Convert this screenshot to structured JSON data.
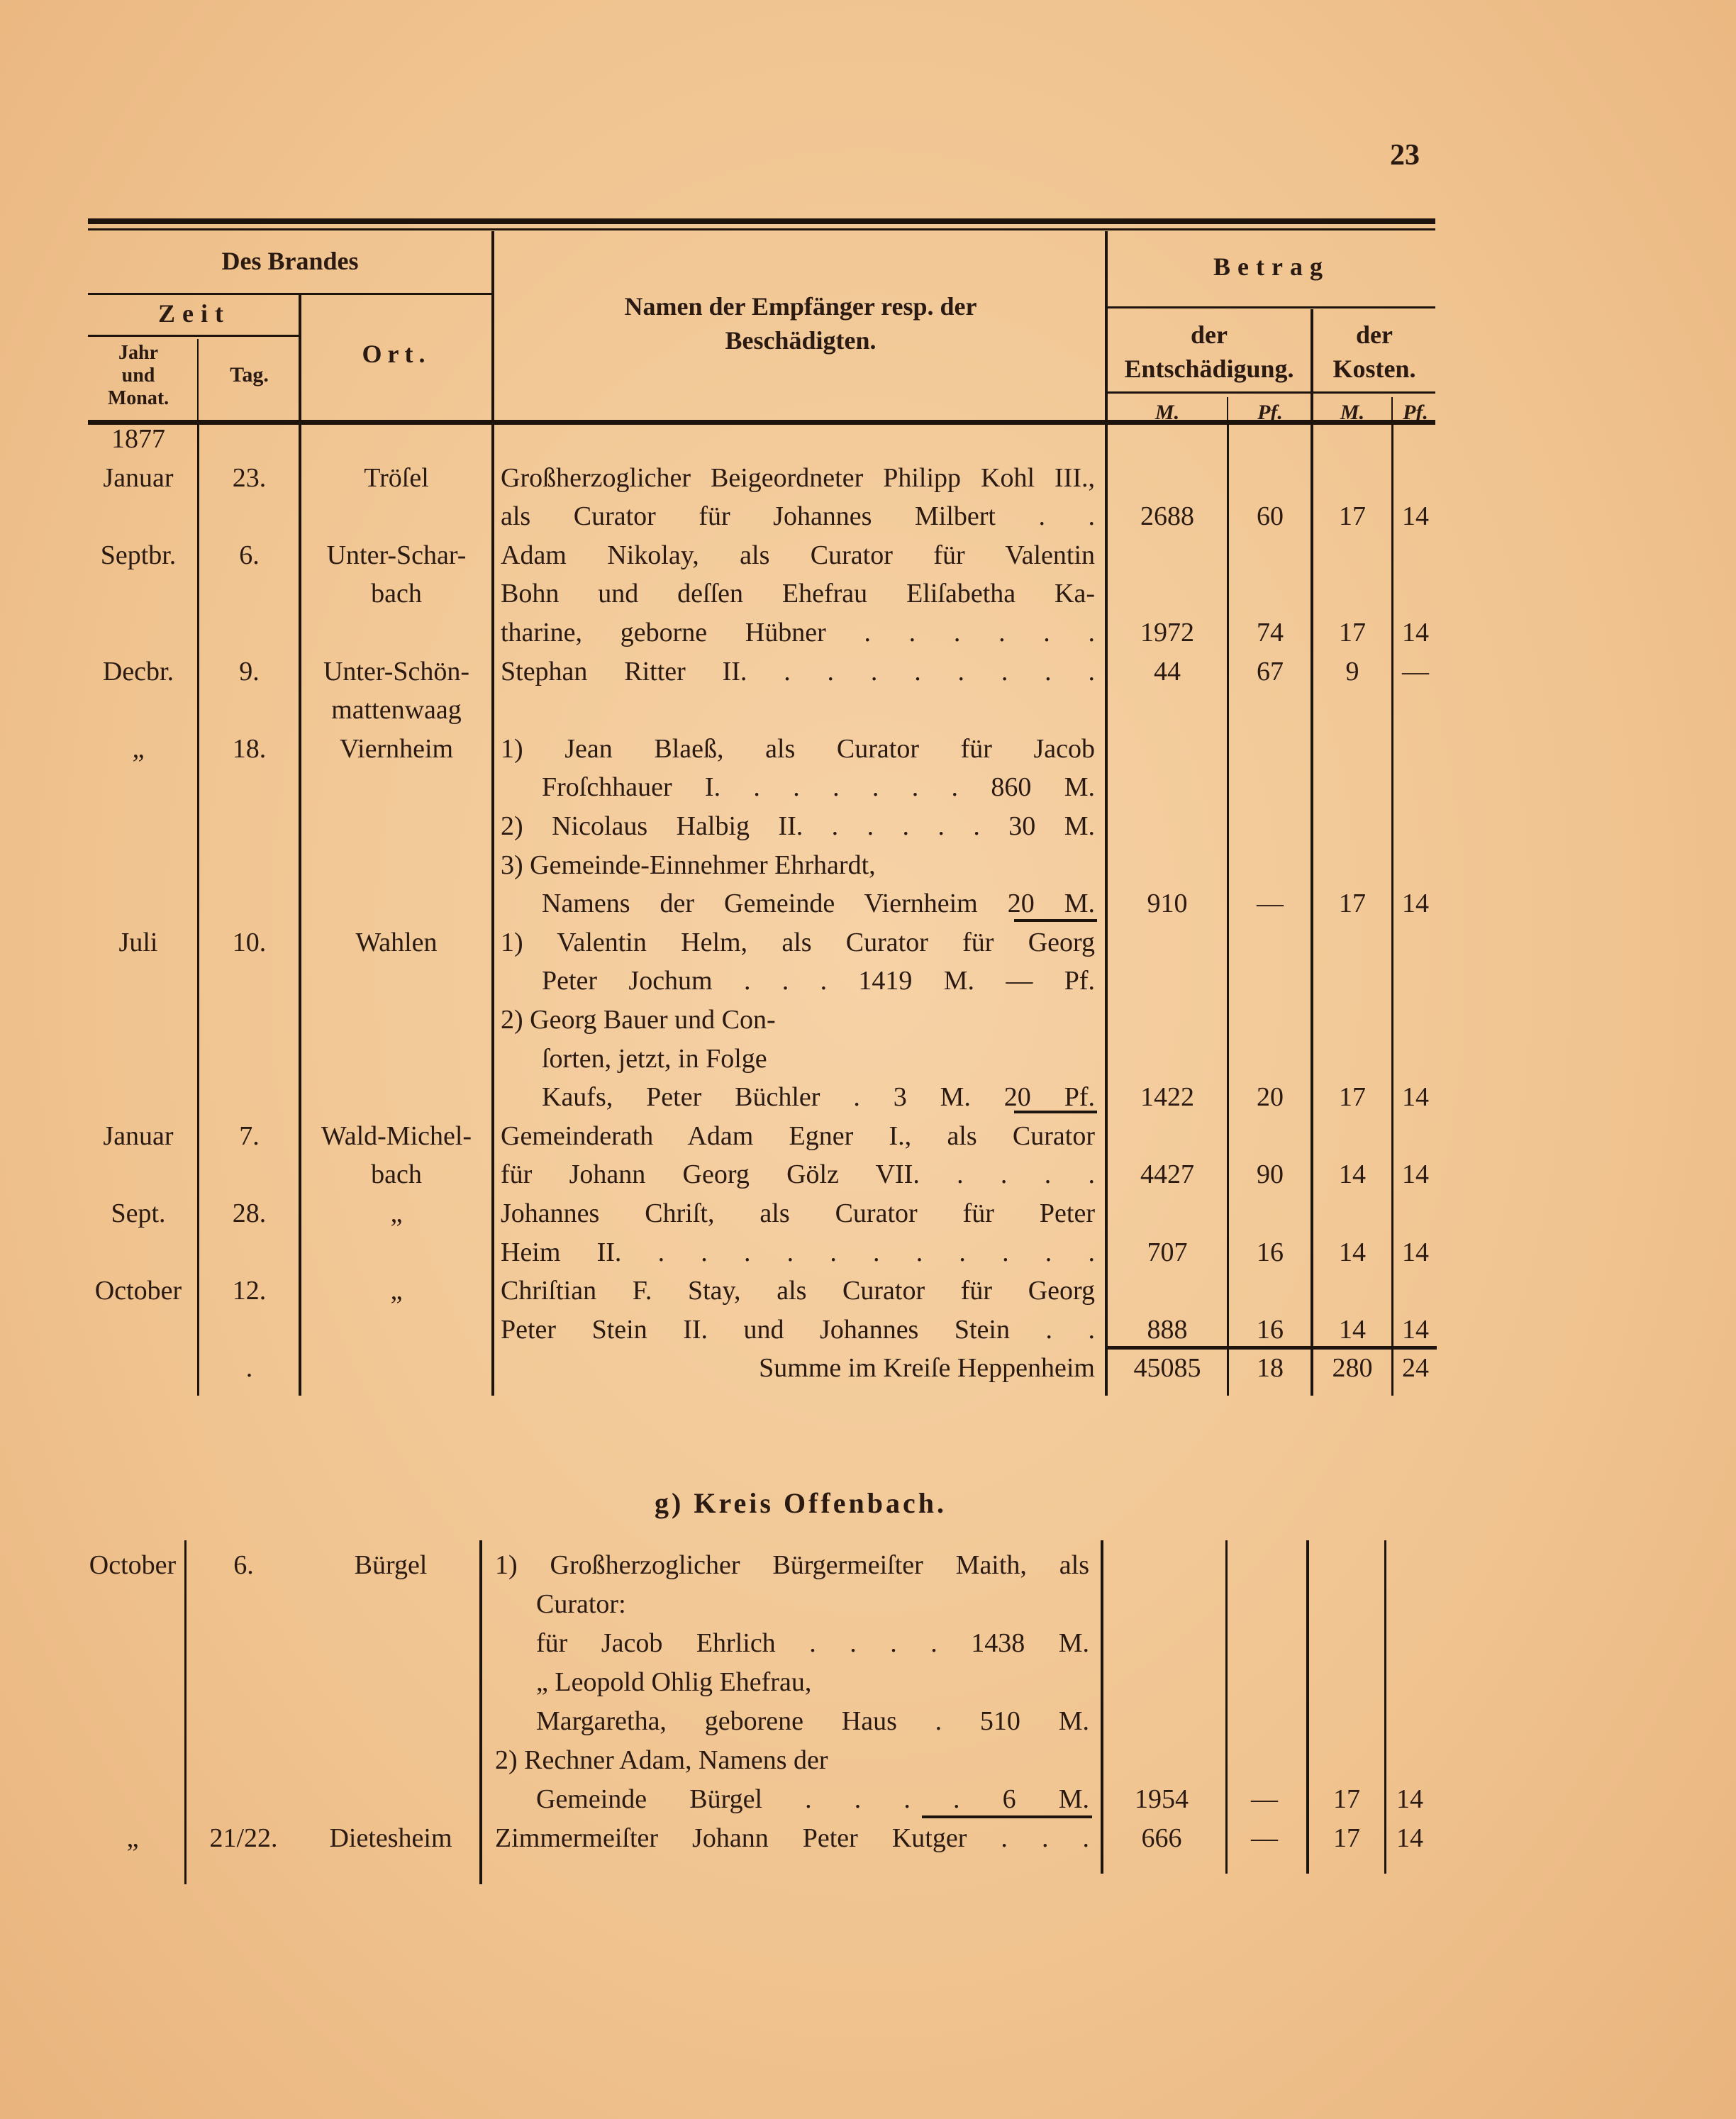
{
  "page_number": "23",
  "header": {
    "des_brandes": "Des Brandes",
    "zeit": "Zeit",
    "jahr_und_monat": [
      "Jahr",
      "und",
      "Monat."
    ],
    "tag": "Tag.",
    "ort": "Ort.",
    "namen": [
      "Namen der Empfänger resp. der",
      "Beschädigten."
    ],
    "betrag": "Betrag",
    "entschaedigung": [
      "der",
      "Entschädigung."
    ],
    "kosten": [
      "der",
      "Kosten."
    ],
    "mark": "M.",
    "pfennig": "Pf."
  },
  "section1": {
    "rows": [
      {
        "month": "1877",
        "day": "",
        "place": "",
        "name": "",
        "m1": "",
        "p1": "",
        "m2": "",
        "p2": ""
      },
      {
        "month": "Januar",
        "day": "23.",
        "place": "Tröſel",
        "name": "Großherzoglicher Beigeordneter Philipp Kohl III.,",
        "m1": "",
        "p1": "",
        "m2": "",
        "p2": ""
      },
      {
        "month": "",
        "day": "",
        "place": "",
        "name": "als Curator für Johannes Milbert  .  .",
        "m1": "2688",
        "p1": "60",
        "m2": "17",
        "p2": "14"
      },
      {
        "month": "Septbr.",
        "day": "6.",
        "place": "Unter-Schar-",
        "name": "Adam Nikolay, als Curator für Valentin",
        "m1": "",
        "p1": "",
        "m2": "",
        "p2": ""
      },
      {
        "month": "",
        "day": "",
        "place": "bach",
        "name": "Bohn und deſſen Ehefrau Eliſabetha Ka-",
        "m1": "",
        "p1": "",
        "m2": "",
        "p2": ""
      },
      {
        "month": "",
        "day": "",
        "place": "",
        "name": "tharine, geborne Hübner . . . . . .",
        "m1": "1972",
        "p1": "74",
        "m2": "17",
        "p2": "14"
      },
      {
        "month": "Decbr.",
        "day": "9.",
        "place": "Unter-Schön-",
        "name": "Stephan Ritter II. . . . . . . . .",
        "m1": "44",
        "p1": "67",
        "m2": "9",
        "p2": "—"
      },
      {
        "month": "",
        "day": "",
        "place": "mattenwaag",
        "name": "",
        "m1": "",
        "p1": "",
        "m2": "",
        "p2": ""
      },
      {
        "month": "„",
        "day": "18.",
        "place": "Viernheim",
        "name": "1) Jean Blaeß, als Curator für Jacob",
        "m1": "",
        "p1": "",
        "m2": "",
        "p2": ""
      },
      {
        "month": "",
        "day": "",
        "place": "",
        "name": "    Froſchhauer I. . . . . . . 860 M.",
        "m1": "",
        "p1": "",
        "m2": "",
        "p2": ""
      },
      {
        "month": "",
        "day": "",
        "place": "",
        "name": "2) Nicolaus Halbig II. . . . . . 30 M.",
        "m1": "",
        "p1": "",
        "m2": "",
        "p2": ""
      },
      {
        "month": "",
        "day": "",
        "place": "",
        "name": "3) Gemeinde-Einnehmer Ehrhardt,",
        "m1": "",
        "p1": "",
        "m2": "",
        "p2": ""
      },
      {
        "month": "",
        "day": "",
        "place": "",
        "name": "    Namens der Gemeinde Viernheim 20 M.",
        "m1": "910",
        "p1": "—",
        "m2": "17",
        "p2": "14"
      },
      {
        "month": "Juli",
        "day": "10.",
        "place": "Wahlen",
        "name": "1) Valentin Helm, als Curator für Georg",
        "m1": "",
        "p1": "",
        "m2": "",
        "p2": ""
      },
      {
        "month": "",
        "day": "",
        "place": "",
        "name": "    Peter Jochum . . . 1419 M. — Pf.",
        "m1": "",
        "p1": "",
        "m2": "",
        "p2": ""
      },
      {
        "month": "",
        "day": "",
        "place": "",
        "name": "2) Georg Bauer und Con-",
        "m1": "",
        "p1": "",
        "m2": "",
        "p2": ""
      },
      {
        "month": "",
        "day": "",
        "place": "",
        "name": "    ſorten, jetzt, in Folge",
        "m1": "",
        "p1": "",
        "m2": "",
        "p2": ""
      },
      {
        "month": "",
        "day": "",
        "place": "",
        "name": "    Kaufs, Peter Büchler  .  3 M. 20 Pf.",
        "m1": "1422",
        "p1": "20",
        "m2": "17",
        "p2": "14"
      },
      {
        "month": "Januar",
        "day": "7.",
        "place": "Wald-Michel-",
        "name": "Gemeinderath Adam Egner I., als Curator",
        "m1": "",
        "p1": "",
        "m2": "",
        "p2": ""
      },
      {
        "month": "",
        "day": "",
        "place": "bach",
        "name": "für Johann Georg Gölz VII. . . . .",
        "m1": "4427",
        "p1": "90",
        "m2": "14",
        "p2": "14"
      },
      {
        "month": "Sept.",
        "day": "28.",
        "place": "„",
        "name": "Johannes Chriſt, als Curator für Peter",
        "m1": "",
        "p1": "",
        "m2": "",
        "p2": ""
      },
      {
        "month": "",
        "day": "",
        "place": "",
        "name": "Heim II. . . . . . . . . . . .",
        "m1": "707",
        "p1": "16",
        "m2": "14",
        "p2": "14"
      },
      {
        "month": "October",
        "day": "12.",
        "place": "„",
        "name": "Chriſtian F. Stay, als Curator für Georg",
        "m1": "",
        "p1": "",
        "m2": "",
        "p2": ""
      },
      {
        "month": "",
        "day": "",
        "place": "",
        "name": "Peter Stein II. und Johannes Stein . .",
        "m1": "888",
        "p1": "16",
        "m2": "14",
        "p2": "14"
      },
      {
        "month": "",
        "day": ".",
        "place": "",
        "name": "Summe im Kreiſe Heppenheim",
        "m1": "45085",
        "p1": "18",
        "m2": "280",
        "p2": "24"
      }
    ]
  },
  "section2": {
    "title": "g) Kreis Offenbach.",
    "rows": [
      {
        "month": "October",
        "day": "6.",
        "place": "Bürgel",
        "name": "1) Großherzoglicher Bürgermeiſter Maith, als",
        "m1": "",
        "p1": "",
        "m2": "",
        "p2": ""
      },
      {
        "month": "",
        "day": "",
        "place": "",
        "name": "    Curator:",
        "m1": "",
        "p1": "",
        "m2": "",
        "p2": ""
      },
      {
        "month": "",
        "day": "",
        "place": "",
        "name": "    für Jacob Ehrlich . . . .  1438 M.",
        "m1": "",
        "p1": "",
        "m2": "",
        "p2": ""
      },
      {
        "month": "",
        "day": "",
        "place": "",
        "name": "    „ Leopold Ohlig Ehefrau,",
        "m1": "",
        "p1": "",
        "m2": "",
        "p2": ""
      },
      {
        "month": "",
        "day": "",
        "place": "",
        "name": "    Margaretha, geborene Haus .  510 M.",
        "m1": "",
        "p1": "",
        "m2": "",
        "p2": ""
      },
      {
        "month": "",
        "day": "",
        "place": "",
        "name": "2) Rechner Adam, Namens der",
        "m1": "",
        "p1": "",
        "m2": "",
        "p2": ""
      },
      {
        "month": "",
        "day": "",
        "place": "",
        "name": "    Gemeinde Bürgel . . . .  6 M.",
        "m1": "1954",
        "p1": "—",
        "m2": "17",
        "p2": "14"
      },
      {
        "month": "„",
        "day": "21/22.",
        "place": "Dietesheim",
        "name": "Zimmermeiſter Johann Peter Kutger . . .",
        "m1": "666",
        "p1": "—",
        "m2": "17",
        "p2": "14"
      }
    ]
  }
}
